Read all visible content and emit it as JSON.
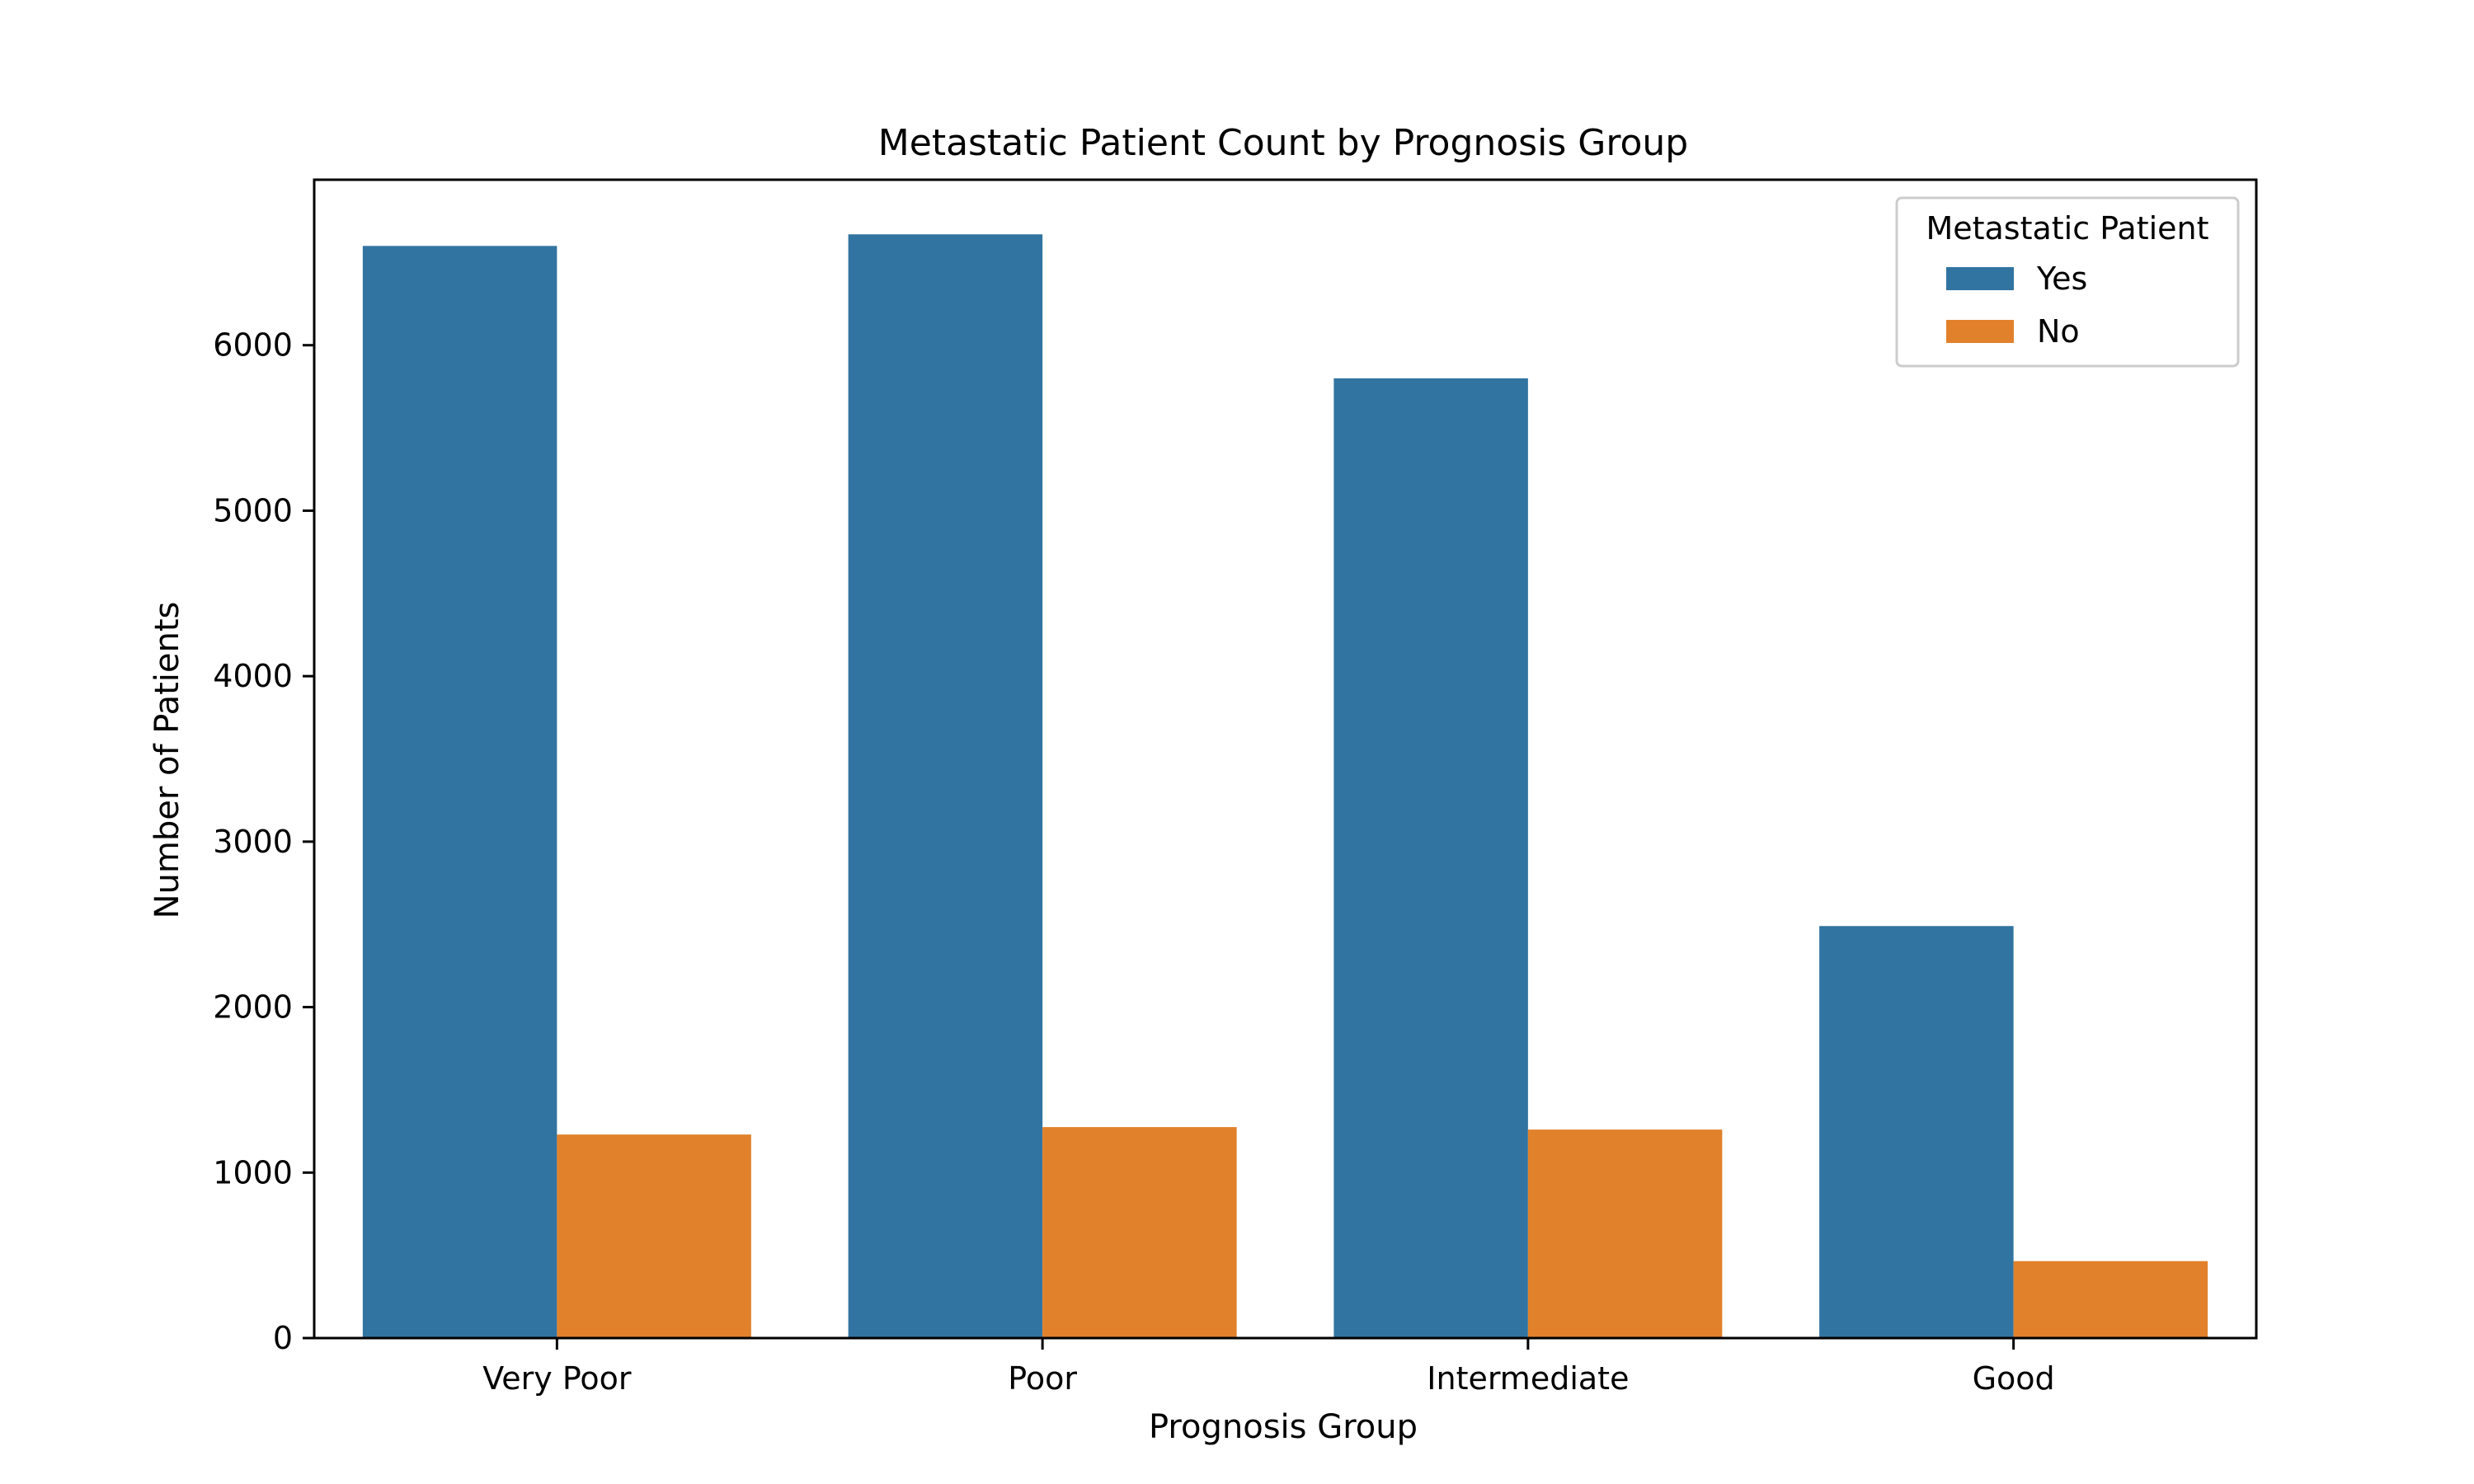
{
  "chart_data": {
    "type": "bar",
    "title": "Metastatic Patient Count by Prognosis Group",
    "xlabel": "Prognosis Group",
    "ylabel": "Number of Patients",
    "categories": [
      "Very Poor",
      "Poor",
      "Intermediate",
      "Good"
    ],
    "series": [
      {
        "name": "Yes",
        "color": "#3274a1",
        "values": [
          6600,
          6670,
          5800,
          2490
        ]
      },
      {
        "name": "No",
        "color": "#e1812c",
        "values": [
          1230,
          1275,
          1260,
          465
        ]
      }
    ],
    "ylim": [
      0,
      7000
    ],
    "yticks": [
      0,
      1000,
      2000,
      3000,
      4000,
      5000,
      6000
    ],
    "grid": false,
    "legend": {
      "title": "Metastatic Patient",
      "position": "top-right"
    }
  }
}
